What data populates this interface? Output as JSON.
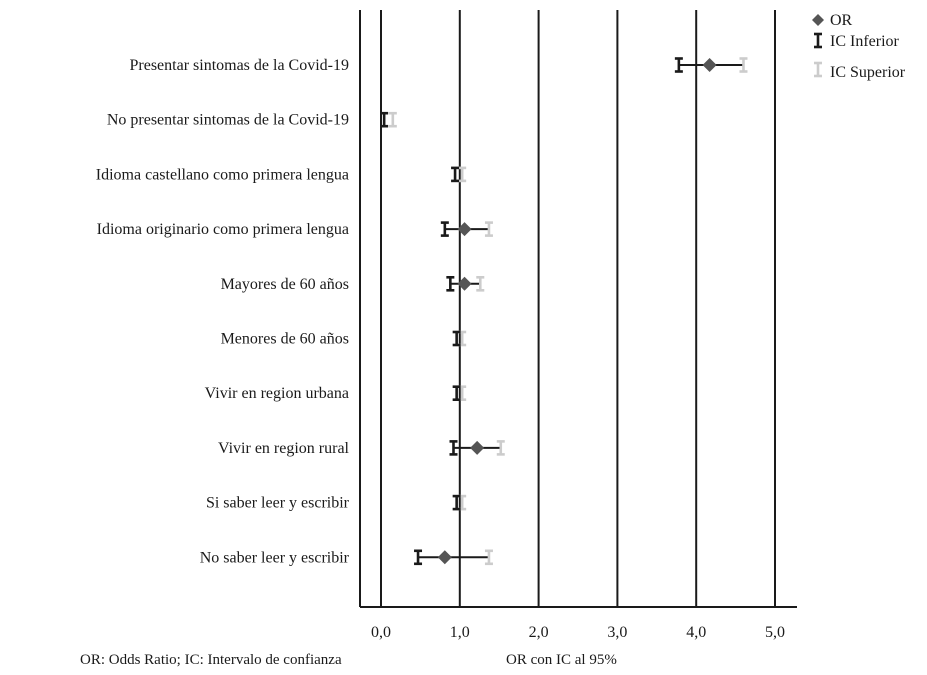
{
  "chart_data": {
    "type": "forest",
    "categories": [
      "Presentar sintomas de la Covid-19",
      "No presentar sintomas de la Covid-19",
      "Idioma castellano como primera lengua",
      "Idioma originario como primera lengua",
      "Mayores de 60 años",
      "Menores de 60 años",
      "Vivir en region urbana",
      "Vivir en region rural",
      "Si saber leer y escribir",
      "No saber leer y escribir"
    ],
    "series": [
      {
        "name": "OR",
        "values": [
          4.17,
          0.1,
          0.97,
          1.06,
          1.06,
          0.99,
          0.99,
          1.22,
          0.99,
          0.81
        ]
      },
      {
        "name": "IC Inferior",
        "values": [
          3.78,
          0.04,
          0.94,
          0.81,
          0.88,
          0.96,
          0.96,
          0.92,
          0.96,
          0.47
        ]
      },
      {
        "name": "IC Superior",
        "values": [
          4.6,
          0.15,
          1.03,
          1.37,
          1.26,
          1.03,
          1.03,
          1.52,
          1.03,
          1.37
        ]
      }
    ],
    "show_or_marker": [
      true,
      false,
      false,
      true,
      true,
      false,
      false,
      true,
      false,
      true
    ],
    "xticks": [
      "0,0",
      "1,0",
      "2,0",
      "3,0",
      "4,0",
      "5,0"
    ],
    "xlim": [
      0,
      5
    ],
    "grid": "vertical",
    "legend_position": "top-right",
    "colors": {
      "or": "#555555",
      "ic_inferior": "#1a1a1a",
      "ic_superior": "#cccccc",
      "axis": "#1a1a1a"
    }
  },
  "footnotes": {
    "left": "OR: Odds Ratio; IC: Intervalo de confianza",
    "right": "OR con IC al 95%"
  }
}
